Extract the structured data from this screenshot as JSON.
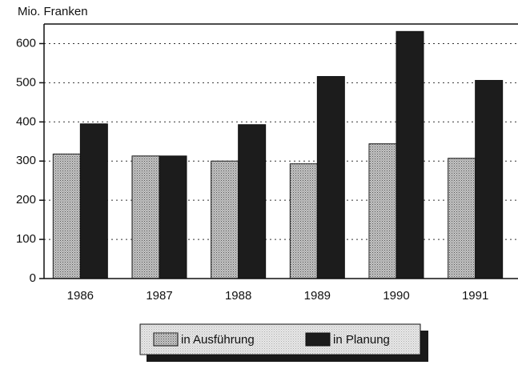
{
  "chart_data": {
    "type": "bar",
    "y_label": "Mio. Franken",
    "categories": [
      "1986",
      "1987",
      "1988",
      "1989",
      "1990",
      "1991"
    ],
    "series": [
      {
        "name": "in Ausführung",
        "color": "#c4c4c4",
        "values": [
          318,
          313,
          300,
          293,
          344,
          307
        ]
      },
      {
        "name": "in Planung",
        "color": "#1c1c1c",
        "values": [
          395,
          313,
          393,
          516,
          631,
          506
        ]
      }
    ],
    "ylim": [
      0,
      650
    ],
    "yticks": [
      0,
      100,
      200,
      300,
      400,
      500,
      600
    ],
    "grid": true
  }
}
